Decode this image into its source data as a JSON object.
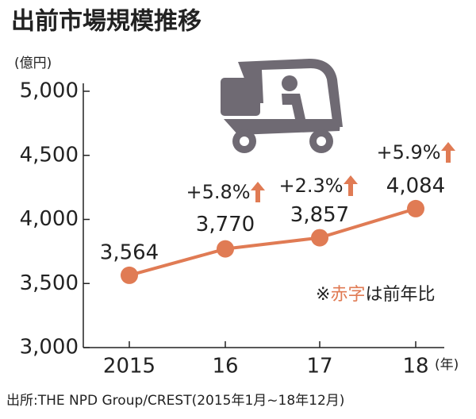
{
  "chart_data": {
    "type": "line",
    "title": "出前市場規模推移",
    "y_unit": "(億円)",
    "x_unit": "(年)",
    "categories": [
      "2015",
      "16",
      "17",
      "18"
    ],
    "values": [
      3564,
      3770,
      3857,
      4084
    ],
    "value_labels": [
      "3,564",
      "3,770",
      "3,857",
      "4,084"
    ],
    "color": "#e07b54",
    "ylim": [
      3000,
      5000
    ],
    "yticks": [
      {
        "value": 3000,
        "label": "3,000"
      },
      {
        "value": 3500,
        "label": "3,500"
      },
      {
        "value": 4000,
        "label": "4,000"
      },
      {
        "value": 4500,
        "label": "4,500"
      },
      {
        "value": 5000,
        "label": "5,000"
      }
    ],
    "annotations": [
      "+5.8%",
      "+2.3%",
      "+5.9%"
    ],
    "note": [
      "※",
      "赤字",
      "は前年比"
    ],
    "source": "出所:THE NPD Group/CREST(2015年1月~18年12月)"
  }
}
